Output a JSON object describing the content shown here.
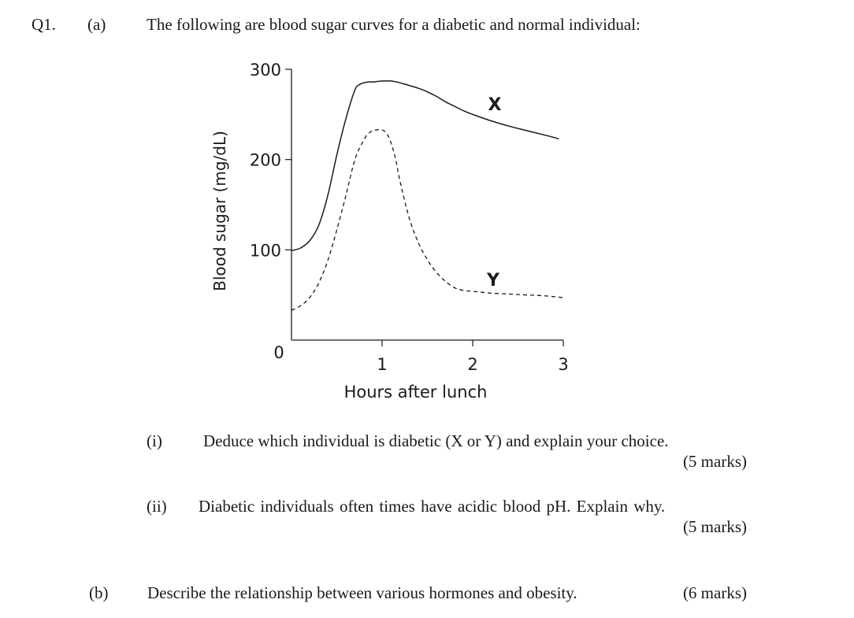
{
  "question": {
    "number": "Q1.",
    "part_a": {
      "label": "(a)",
      "intro": "The following are blood sugar curves for a diabetic and normal individual:",
      "sub_i": {
        "label": "(i)",
        "text": "Deduce which individual is diabetic (X or Y) and explain your choice.",
        "marks": "(5 marks)"
      },
      "sub_ii": {
        "label": "(ii)",
        "text": "Diabetic individuals often times have acidic blood pH. Explain why.",
        "marks": "(5 marks)"
      }
    },
    "part_b": {
      "label": "(b)",
      "text": "Describe the relationship between various hormones and obesity.",
      "marks": "(6 marks)"
    }
  },
  "chart_data": {
    "type": "line",
    "title": "",
    "xlabel": "Hours after lunch",
    "ylabel": "Blood sugar (mg/dL)",
    "xlim": [
      0,
      3
    ],
    "ylim": [
      0,
      300
    ],
    "x_ticks": [
      1,
      2,
      3
    ],
    "y_ticks": [
      100,
      200,
      300
    ],
    "origin_label": "0",
    "grid": false,
    "series": [
      {
        "name": "X",
        "style": "solid",
        "x": [
          0,
          0.1,
          0.2,
          0.3,
          0.4,
          0.5,
          0.6,
          0.7,
          0.75,
          0.8,
          0.85,
          0.9,
          1.0,
          1.1,
          1.2,
          1.3,
          1.4,
          1.5,
          1.6,
          1.7,
          1.8,
          1.9,
          2.0,
          2.2,
          2.4,
          2.6,
          2.8,
          2.95
        ],
        "y": [
          99,
          102,
          110,
          127,
          160,
          205,
          245,
          277,
          283,
          285,
          286,
          286,
          287,
          287,
          285,
          282,
          279,
          275,
          270,
          264,
          259,
          254,
          250,
          243,
          237,
          232,
          227,
          223
        ]
      },
      {
        "name": "Y",
        "style": "dashed",
        "x": [
          0,
          0.1,
          0.2,
          0.3,
          0.4,
          0.5,
          0.6,
          0.7,
          0.8,
          0.85,
          0.9,
          0.95,
          1.0,
          1.05,
          1.1,
          1.15,
          1.2,
          1.3,
          1.4,
          1.5,
          1.6,
          1.7,
          1.8,
          1.9,
          2.0,
          2.1,
          2.2,
          2.4,
          2.6,
          2.8,
          3.0
        ],
        "y": [
          33,
          38,
          47,
          63,
          88,
          122,
          160,
          200,
          222,
          229,
          232,
          233,
          233,
          229,
          218,
          200,
          175,
          135,
          108,
          89,
          75,
          65,
          58,
          55,
          54,
          53,
          52,
          51,
          50,
          49,
          47
        ]
      }
    ],
    "annotations": [
      "X",
      "Y"
    ]
  }
}
